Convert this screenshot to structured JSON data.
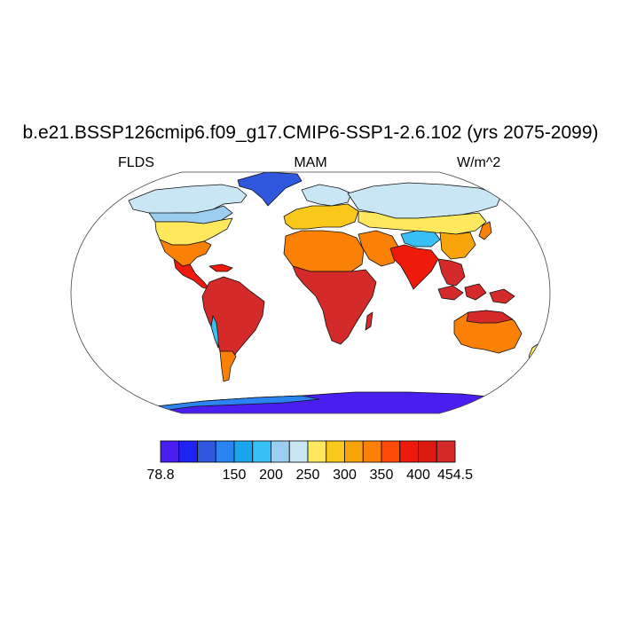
{
  "title": "b.e21.BSSP126cmip6.f09_g17.CMIP6-SSP1-2.6.102 (yrs 2075-2099)",
  "subtitles": {
    "left": "FLDS",
    "center": "MAM",
    "right": "W/m^2"
  },
  "colorbar": {
    "colors": [
      "#4a1ef0",
      "#1e22f3",
      "#2f58de",
      "#2b84f2",
      "#1aa6ec",
      "#38bff4",
      "#9acdf0",
      "#c9e6f5",
      "#fde85e",
      "#f9c81b",
      "#f9a40a",
      "#fb8106",
      "#fc4b08",
      "#ee1b0d",
      "#db1a0f",
      "#d42a2a"
    ],
    "labels": [
      "78.8",
      "150",
      "200",
      "250",
      "300",
      "350",
      "400",
      "454.5"
    ]
  },
  "map": {
    "projection": "Robinson",
    "ocean_color": "#ffffff",
    "regions": [
      {
        "name": "Greenland",
        "color": "#2f58de"
      },
      {
        "name": "Arctic Canada",
        "color": "#c9e6f5"
      },
      {
        "name": "North America central",
        "color": "#fde85e"
      },
      {
        "name": "North America south",
        "color": "#fb8106"
      },
      {
        "name": "Central America",
        "color": "#ee1b0d"
      },
      {
        "name": "South America",
        "color": "#d42a2a"
      },
      {
        "name": "Europe",
        "color": "#f9c81b"
      },
      {
        "name": "North Africa",
        "color": "#fb8106"
      },
      {
        "name": "Central Africa",
        "color": "#d42a2a"
      },
      {
        "name": "Siberia",
        "color": "#c9e6f5"
      },
      {
        "name": "Tibetan Plateau",
        "color": "#38bff4"
      },
      {
        "name": "South Asia",
        "color": "#ee1b0d"
      },
      {
        "name": "Maritime Continent",
        "color": "#d42a2a"
      },
      {
        "name": "Australia",
        "color": "#fb8106"
      },
      {
        "name": "Antarctica",
        "color": "#4a1ef0"
      }
    ]
  }
}
